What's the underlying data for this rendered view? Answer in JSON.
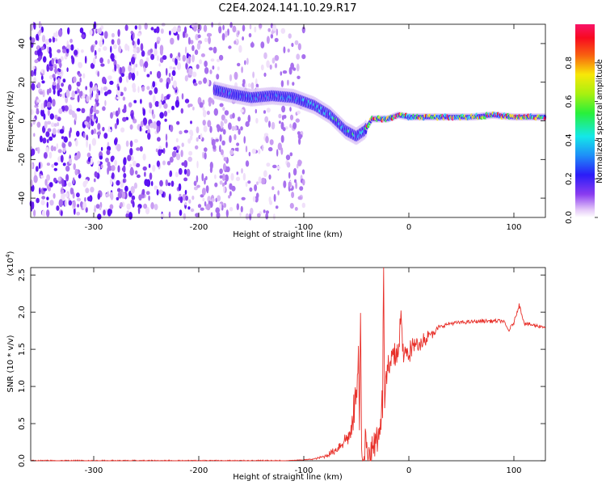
{
  "title": "C2E4.2024.141.10.29.R17",
  "chart_data": [
    {
      "type": "heatmap",
      "xlabel": "Height of straight line (km)",
      "ylabel": "Frequency (Hz)",
      "xlim": [
        -360,
        130
      ],
      "ylim": [
        -50,
        50
      ],
      "xticks": [
        -300,
        -200,
        -100,
        0,
        100
      ],
      "yticks": [
        -40,
        -20,
        0,
        20,
        40
      ],
      "colorbar": {
        "label": "Normalized spectral amplitude",
        "range": [
          0.0,
          1.0
        ],
        "ticks": [
          0.0,
          0.2,
          0.4,
          0.6,
          0.8
        ],
        "colormap": "rainbow (white-violet-blue-cyan-green-yellow-red-magenta)"
      },
      "ridge": {
        "x": [
          -185,
          -170,
          -150,
          -130,
          -110,
          -90,
          -75,
          -60,
          -50,
          -42,
          -35,
          -20,
          -10,
          0,
          20,
          60,
          80,
          100,
          130
        ],
        "y": [
          16,
          14,
          12,
          13,
          12,
          8,
          3,
          -5,
          -8,
          -5,
          1,
          1,
          3,
          2,
          2,
          2,
          3,
          2,
          2
        ]
      },
      "noise_region": {
        "x": [
          -360,
          -100
        ]
      }
    },
    {
      "type": "line",
      "xlabel": "Height of straight line (km)",
      "ylabel": "SNR (10 * v/v)",
      "y_multiplier": "(x10",
      "y_multiplier_exp": "4",
      "y_multiplier_close": ")",
      "xlim": [
        -360,
        130
      ],
      "ylim": [
        0,
        2.6
      ],
      "xticks": [
        -300,
        -200,
        -100,
        0,
        100
      ],
      "yticks": [
        0.0,
        0.5,
        1.0,
        1.5,
        2.0,
        2.5
      ],
      "color": "#e8302a",
      "series": [
        {
          "x": [
            -360,
            -120,
            -100,
            -90,
            -80,
            -70,
            -60,
            -55,
            -50,
            -48,
            -47,
            -46,
            -45,
            -44,
            -42,
            -40,
            -35,
            -30,
            -25,
            -24,
            -23,
            -22,
            -20,
            -15,
            -10,
            -8,
            -5,
            0,
            5,
            10,
            15,
            20,
            25,
            30,
            35,
            40,
            50,
            60,
            70,
            80,
            90,
            95,
            100,
            105,
            110,
            120,
            130
          ],
          "y": [
            0.0,
            0.0,
            0.01,
            0.02,
            0.05,
            0.12,
            0.25,
            0.3,
            0.8,
            1.6,
            0.4,
            1.9,
            0.3,
            0.2,
            0.25,
            0.15,
            0.2,
            0.35,
            0.8,
            2.6,
            0.9,
            1.1,
            1.2,
            1.4,
            1.5,
            2.0,
            1.4,
            1.5,
            1.55,
            1.6,
            1.65,
            1.7,
            1.75,
            1.8,
            1.83,
            1.85,
            1.86,
            1.87,
            1.88,
            1.88,
            1.88,
            1.75,
            1.86,
            2.1,
            1.85,
            1.82,
            1.8
          ]
        }
      ]
    }
  ]
}
